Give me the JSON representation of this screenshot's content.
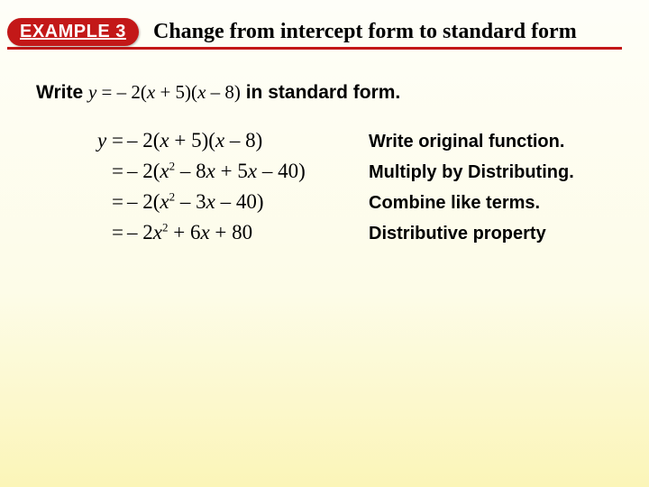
{
  "header": {
    "badge": "EXAMPLE 3",
    "title": "Change from intercept form to standard form",
    "badge_bg": "#c31818",
    "badge_fg": "#ffffff",
    "underline_color": "#c31818"
  },
  "prompt": {
    "lead": "Write ",
    "equation_html": "y = – 2(x + 5)(x – 8)",
    "trail": " in standard form."
  },
  "steps": [
    {
      "lhs_var": "y",
      "lhs_eq": " =",
      "rhs": " – 2(x + 5)(x –  8)",
      "explain": "Write original function."
    },
    {
      "lhs_var": "",
      "lhs_eq": "=",
      "rhs": " – 2(x² – 8x + 5x – 40)",
      "explain": "Multiply by Distributing."
    },
    {
      "lhs_var": "",
      "lhs_eq": "=",
      "rhs": " – 2(x² – 3x – 40)",
      "explain": "Combine like terms."
    },
    {
      "lhs_var": "",
      "lhs_eq": "=",
      "rhs": " – 2x² + 6x + 80",
      "explain": "Distributive property"
    }
  ],
  "style": {
    "bg_gradient_top": "#fefef8",
    "bg_gradient_bottom": "#fbf5b8",
    "math_font": "Times New Roman",
    "label_font": "Arial",
    "math_fontsize_pt": 17,
    "label_fontsize_pt": 15,
    "title_fontsize_pt": 18
  }
}
